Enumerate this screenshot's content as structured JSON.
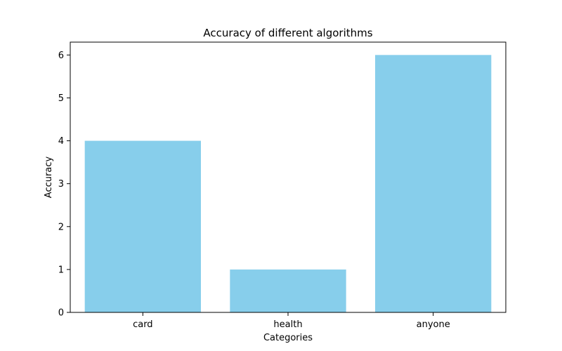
{
  "chart_data": {
    "type": "bar",
    "title": "Accuracy of different algorithms",
    "xlabel": "Categories",
    "ylabel": "Accuracy",
    "categories": [
      "card",
      "health",
      "anyone"
    ],
    "values": [
      4,
      1,
      6
    ],
    "ylim": [
      0,
      6.3
    ],
    "yticks": [
      0,
      1,
      2,
      3,
      4,
      5,
      6
    ],
    "bar_color": "#87CEEB",
    "grid": false,
    "legend": "none"
  }
}
